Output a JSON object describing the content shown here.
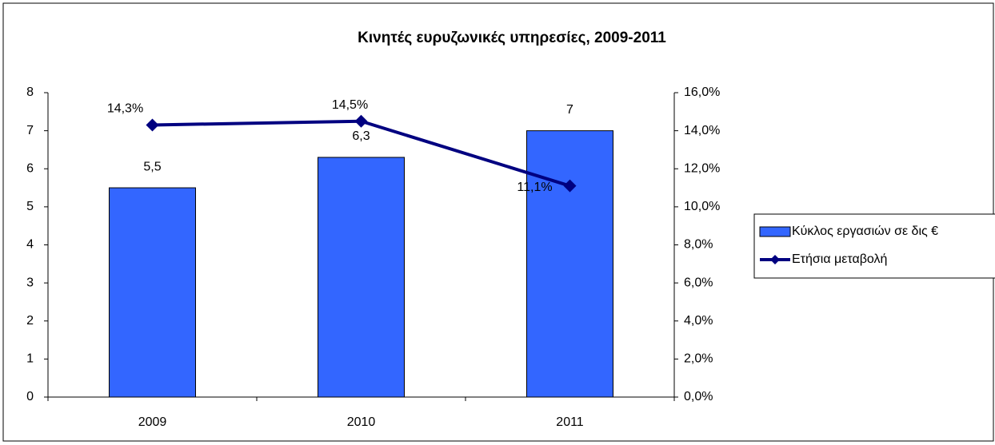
{
  "chart_data": {
    "type": "bar",
    "title": "Κινητές ευρυζωνικές υπηρεσίες, 2009-2011",
    "categories": [
      "2009",
      "2010",
      "2011"
    ],
    "series": [
      {
        "name": "Κύκλος εργασιών σε δις €",
        "type": "bar",
        "color": "#3366ff",
        "values": [
          5.5,
          6.3,
          7
        ],
        "value_labels": [
          "5,5",
          "6,3",
          "7"
        ]
      },
      {
        "name": "Ετήσια μεταβολή",
        "type": "line",
        "axis": "y2",
        "color": "#000080",
        "values": [
          14.3,
          14.5,
          11.1
        ],
        "value_labels": [
          "14,3%",
          "14,5%",
          "11,1%"
        ]
      }
    ],
    "ylim": [
      0,
      8
    ],
    "yticks": [
      0,
      1,
      2,
      3,
      4,
      5,
      6,
      7,
      8
    ],
    "y2lim": [
      0,
      16
    ],
    "y2ticks": [
      {
        "value": 0,
        "label": "0,0%"
      },
      {
        "value": 2,
        "label": "2,0%"
      },
      {
        "value": 4,
        "label": "4,0%"
      },
      {
        "value": 6,
        "label": "6,0%"
      },
      {
        "value": 8,
        "label": "8,0%"
      },
      {
        "value": 10,
        "label": "10,0%"
      },
      {
        "value": 12,
        "label": "12,0%"
      },
      {
        "value": 14,
        "label": "14,0%"
      },
      {
        "value": 16,
        "label": "16,0%"
      }
    ],
    "legend": "right"
  }
}
